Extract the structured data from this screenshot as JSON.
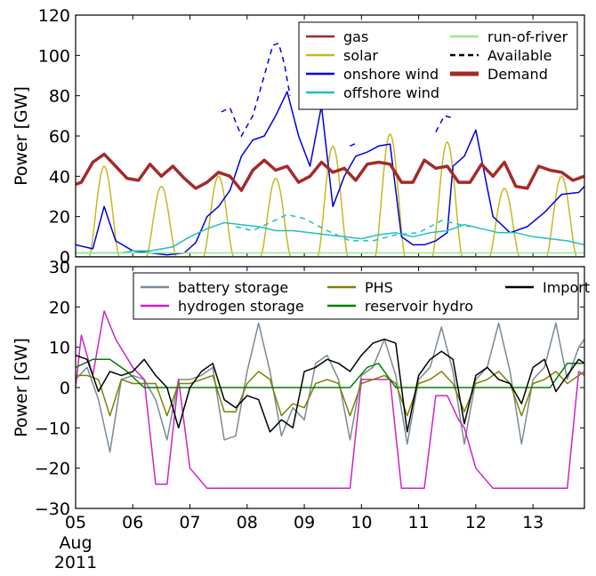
{
  "chart_data": [
    {
      "type": "line",
      "ylabel": "Power [GW]",
      "ylim": [
        0,
        120
      ],
      "yticks": [
        0,
        20,
        40,
        60,
        80,
        100,
        120
      ],
      "xlim": [
        0,
        8.9
      ],
      "legend": {
        "placement": "top-right",
        "columns": 2
      },
      "series": [
        {
          "name": "gas",
          "color": "#a52a2a",
          "style": "solid",
          "y": [
            0,
            0,
            0,
            0,
            0,
            0,
            0,
            0,
            0,
            0,
            0,
            0,
            0,
            0,
            0,
            0,
            0,
            0,
            0
          ]
        },
        {
          "name": "solar",
          "color": "#c8b820",
          "style": "solid",
          "peaks": [
            {
              "day": 0.5,
              "value": 45
            },
            {
              "day": 1.5,
              "value": 35
            },
            {
              "day": 2.5,
              "value": 40
            },
            {
              "day": 3.5,
              "value": 39
            },
            {
              "day": 4.5,
              "value": 55
            },
            {
              "day": 5.5,
              "value": 61
            },
            {
              "day": 6.5,
              "value": 57
            },
            {
              "day": 7.5,
              "value": 34
            },
            {
              "day": 8.5,
              "value": 40
            }
          ]
        },
        {
          "name": "onshore wind",
          "color": "#0000dd",
          "style": "solid",
          "x": [
            0,
            0.3,
            0.5,
            0.7,
            1,
            1.3,
            1.6,
            1.9,
            2.1,
            2.3,
            2.5,
            2.7,
            2.9,
            3.1,
            3.3,
            3.5,
            3.7,
            3.9,
            4.1,
            4.3,
            4.5,
            4.7,
            4.9,
            5.1,
            5.3,
            5.5,
            5.7,
            5.9,
            6.1,
            6.3,
            6.5,
            6.6,
            6.8,
            7,
            7.3,
            7.6,
            7.9,
            8.2,
            8.5,
            8.8,
            8.9
          ],
          "y": [
            6,
            4,
            25,
            8,
            3,
            2,
            1,
            2,
            7,
            20,
            25,
            33,
            50,
            58,
            60,
            70,
            82,
            60,
            45,
            75,
            25,
            40,
            50,
            52,
            55,
            56,
            10,
            6,
            6,
            8,
            12,
            45,
            50,
            63,
            20,
            12,
            15,
            22,
            31,
            32,
            35
          ]
        },
        {
          "name": "offshore wind",
          "color": "#20c0c0",
          "style": "solid",
          "x": [
            0,
            0.8,
            1,
            1.3,
            1.7,
            2,
            2.3,
            2.6,
            2.9,
            3.2,
            3.5,
            3.8,
            4.1,
            4.4,
            4.7,
            5,
            5.3,
            5.6,
            5.9,
            6.2,
            6.5,
            6.8,
            7.1,
            7.4,
            7.7,
            8,
            8.3,
            8.6,
            8.9
          ],
          "y": [
            2,
            2,
            3,
            3,
            5,
            10,
            14,
            17,
            16,
            15,
            13,
            13,
            12,
            11,
            10,
            9,
            11,
            12,
            10,
            12,
            13,
            16,
            14,
            12,
            12,
            10,
            9,
            8,
            6
          ]
        },
        {
          "name": "run-of-river",
          "color": "#90ee90",
          "style": "solid",
          "y": [
            2,
            2,
            2,
            2,
            2,
            2,
            2,
            2,
            2,
            2,
            2,
            2,
            2,
            2,
            2,
            2,
            2,
            2,
            2
          ]
        },
        {
          "name": "Available",
          "color": "#000000",
          "style": "dashed",
          "y": []
        },
        {
          "name": "Demand",
          "color": "#a52a2a",
          "style": "thick",
          "x": [
            0,
            0.1,
            0.3,
            0.5,
            0.7,
            0.9,
            1.1,
            1.3,
            1.5,
            1.7,
            1.9,
            2.1,
            2.3,
            2.5,
            2.7,
            2.9,
            3.1,
            3.3,
            3.5,
            3.7,
            3.9,
            4.1,
            4.3,
            4.5,
            4.7,
            4.9,
            5.1,
            5.3,
            5.5,
            5.7,
            5.9,
            6.1,
            6.3,
            6.5,
            6.7,
            6.9,
            7.1,
            7.3,
            7.5,
            7.7,
            7.9,
            8.1,
            8.3,
            8.5,
            8.7,
            8.9
          ],
          "y": [
            36,
            37,
            47,
            51,
            45,
            39,
            38,
            46,
            40,
            45,
            39,
            34,
            37,
            42,
            40,
            33,
            43,
            48,
            43,
            45,
            37,
            40,
            47,
            42,
            44,
            38,
            46,
            47,
            46,
            37,
            37,
            48,
            44,
            45,
            37,
            37,
            46,
            40,
            47,
            35,
            34,
            45,
            43,
            42,
            38,
            40
          ]
        }
      ],
      "available_dashed": [
        {
          "color": "#0000dd",
          "x": [
            2.55,
            2.7,
            2.9,
            3.1,
            3.3,
            3.45,
            3.55,
            3.65,
            3.75
          ],
          "y": [
            72,
            74,
            60,
            70,
            90,
            105,
            106,
            96,
            80
          ]
        },
        {
          "color": "#0000dd",
          "x": [
            4.8,
            4.95
          ],
          "y": [
            55,
            57
          ]
        },
        {
          "color": "#0000dd",
          "x": [
            6.3,
            6.45,
            6.6
          ],
          "y": [
            62,
            70,
            69
          ]
        },
        {
          "color": "#20c0c0",
          "x": [
            2.8,
            3.1,
            3.4,
            3.7,
            4.0,
            4.4,
            4.8,
            5.2,
            5.6,
            6.0,
            6.4,
            6.9
          ],
          "y": [
            15,
            13,
            17,
            21,
            19,
            13,
            8,
            8,
            11,
            12,
            18,
            15
          ]
        }
      ]
    },
    {
      "type": "line",
      "ylabel": "Power [GW]",
      "ylim": [
        -30,
        30
      ],
      "yticks": [
        -30,
        -20,
        -10,
        0,
        10,
        20,
        30
      ],
      "xlim": [
        0,
        8.9
      ],
      "xticks": [
        "05",
        "06",
        "07",
        "08",
        "09",
        "10",
        "11",
        "12",
        "13"
      ],
      "xlabel_extra": [
        "Aug",
        "2011"
      ],
      "legend": {
        "placement": "top",
        "columns": 3
      },
      "series": [
        {
          "name": "battery storage",
          "color": "#7a8a96",
          "x": [
            0,
            0.2,
            0.4,
            0.6,
            0.8,
            1,
            1.2,
            1.4,
            1.6,
            1.8,
            2,
            2.2,
            2.4,
            2.6,
            2.8,
            3,
            3.2,
            3.4,
            3.6,
            3.8,
            4,
            4.2,
            4.4,
            4.6,
            4.8,
            5,
            5.2,
            5.4,
            5.6,
            5.8,
            6,
            6.2,
            6.4,
            6.6,
            6.8,
            7,
            7.2,
            7.4,
            7.6,
            7.8,
            8,
            8.2,
            8.4,
            8.6,
            8.8,
            8.9
          ],
          "y": [
            2,
            5,
            -3,
            -16,
            2,
            3,
            2,
            -3,
            -13,
            2,
            2,
            3,
            5,
            -13,
            -12,
            4,
            16,
            4,
            -12,
            -5,
            -8,
            6,
            8,
            2,
            -13,
            3,
            5,
            12,
            3,
            -14,
            2,
            5,
            15,
            4,
            -14,
            2,
            5,
            16,
            4,
            -14,
            2,
            5,
            16,
            2,
            10,
            12
          ]
        },
        {
          "name": "hydrogen storage",
          "color": "#cc22cc",
          "x": [
            0,
            0.1,
            0.3,
            0.5,
            0.7,
            1,
            1.2,
            1.4,
            1.6,
            1.8,
            2,
            2.3,
            2.6,
            3,
            3.4,
            3.8,
            4.2,
            4.4,
            4.6,
            4.8,
            5,
            5.3,
            5.5,
            5.7,
            5.9,
            6.1,
            6.3,
            6.5,
            6.7,
            6.8,
            7,
            7.3,
            7.6,
            7.8,
            8,
            8.2,
            8.4,
            8.6,
            8.8,
            8.9
          ],
          "y": [
            0,
            13,
            3,
            19,
            12,
            5,
            2,
            -24,
            -24,
            2,
            -20,
            -25,
            -25,
            -25,
            -25,
            -25,
            -25,
            -25,
            -25,
            -25,
            2,
            2,
            2,
            -25,
            -25,
            -25,
            -2,
            -2,
            -8,
            -10,
            -20,
            -25,
            -25,
            -25,
            -25,
            -25,
            -25,
            -25,
            4,
            3
          ]
        },
        {
          "name": "PHS",
          "color": "#808000",
          "x": [
            0,
            0.2,
            0.4,
            0.6,
            0.8,
            1,
            1.2,
            1.4,
            1.6,
            1.8,
            2,
            2.2,
            2.4,
            2.6,
            2.8,
            3,
            3.2,
            3.4,
            3.6,
            3.8,
            4,
            4.2,
            4.4,
            4.6,
            4.8,
            5,
            5.2,
            5.4,
            5.6,
            5.8,
            6,
            6.2,
            6.4,
            6.6,
            6.8,
            7,
            7.2,
            7.4,
            7.6,
            7.8,
            8,
            8.2,
            8.4,
            8.6,
            8.8,
            8.9
          ],
          "y": [
            3,
            3,
            2,
            -7,
            2,
            1,
            1,
            1,
            -7,
            1,
            1,
            2,
            3,
            -6,
            -6,
            1,
            4,
            2,
            -7,
            -4,
            -5,
            1,
            2,
            1,
            -7,
            1,
            2,
            3,
            1,
            -7,
            1,
            2,
            4,
            1,
            -6,
            1,
            2,
            4,
            1,
            -7,
            1,
            2,
            4,
            1,
            3,
            4
          ]
        },
        {
          "name": "reservoir hydro",
          "color": "#008000",
          "x": [
            0,
            0.3,
            0.6,
            0.9,
            1.2,
            1.5,
            1.8,
            2.1,
            2.4,
            2.7,
            3,
            3.3,
            3.6,
            3.9,
            4.2,
            4.5,
            4.8,
            5.1,
            5.3,
            5.6,
            5.9,
            6.2,
            6.5,
            6.8,
            7.1,
            7.4,
            7.7,
            8,
            8.3,
            8.6,
            8.9
          ],
          "y": [
            5,
            7,
            7,
            4,
            0,
            0,
            0,
            0,
            0,
            0,
            0,
            0,
            0,
            0,
            0,
            0,
            0,
            5,
            6,
            0,
            0,
            0,
            0,
            0,
            0,
            0,
            0,
            0,
            0,
            6,
            6
          ]
        },
        {
          "name": "Import",
          "color": "#000000",
          "x": [
            0,
            0.2,
            0.4,
            0.6,
            0.8,
            1,
            1.2,
            1.4,
            1.6,
            1.8,
            2,
            2.2,
            2.4,
            2.6,
            2.8,
            3,
            3.2,
            3.4,
            3.6,
            3.8,
            4,
            4.2,
            4.4,
            4.6,
            4.8,
            5,
            5.2,
            5.4,
            5.6,
            5.8,
            6,
            6.2,
            6.4,
            6.6,
            6.8,
            7,
            7.2,
            7.4,
            7.6,
            7.8,
            8,
            8.2,
            8.4,
            8.6,
            8.8,
            8.9
          ],
          "y": [
            8,
            7,
            -1,
            4,
            3,
            4,
            7,
            3,
            0,
            -10,
            0,
            4,
            6,
            -3,
            -5,
            -2,
            -3,
            -11,
            -8,
            -10,
            4,
            5,
            7,
            6,
            4,
            8,
            11,
            12,
            11,
            -11,
            3,
            7,
            9,
            7,
            -9,
            3,
            5,
            2,
            1,
            -4,
            5,
            7,
            -1,
            3,
            7,
            6
          ]
        }
      ]
    }
  ]
}
